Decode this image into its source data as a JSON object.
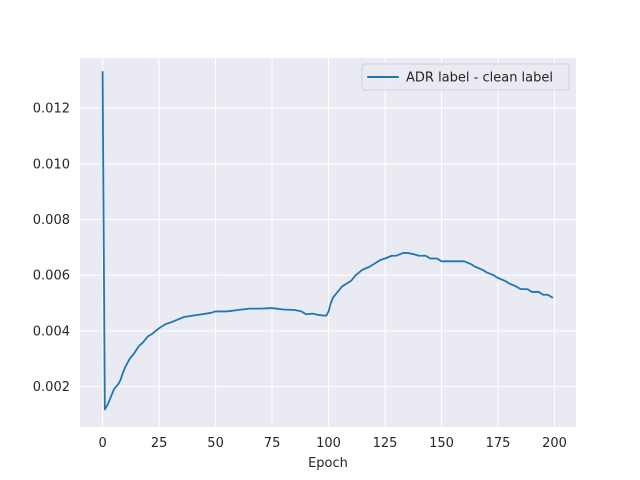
{
  "chart_data": {
    "type": "line",
    "title": "",
    "xlabel": "Epoch",
    "ylabel": "",
    "xlim": [
      -10,
      209.5
    ],
    "ylim": [
      0.00055,
      0.0138
    ],
    "xticks": [
      0,
      25,
      50,
      75,
      100,
      125,
      150,
      175,
      200
    ],
    "yticks": [
      0.002,
      0.004,
      0.006,
      0.008,
      0.01,
      0.012
    ],
    "ytick_labels": [
      "0.002",
      "0.004",
      "0.006",
      "0.008",
      "0.010",
      "0.012"
    ],
    "grid": true,
    "legend_position": "top-right",
    "colors": {
      "background": "#eaeaf2",
      "grid": "#ffffff",
      "series": "#1f77b4"
    },
    "series": [
      {
        "name": "ADR label - clean label",
        "x": [
          0,
          1,
          2,
          3,
          4,
          5,
          6,
          7,
          8,
          9,
          10,
          12,
          14,
          16,
          18,
          20,
          22,
          25,
          28,
          30,
          33,
          36,
          40,
          44,
          48,
          50,
          55,
          60,
          65,
          70,
          75,
          80,
          85,
          88,
          90,
          93,
          95,
          97,
          98,
          99,
          100,
          101,
          102,
          104,
          106,
          108,
          110,
          112,
          115,
          118,
          120,
          123,
          125,
          128,
          130,
          133,
          135,
          138,
          140,
          143,
          145,
          148,
          150,
          153,
          155,
          158,
          160,
          163,
          165,
          168,
          170,
          173,
          175,
          178,
          180,
          183,
          185,
          188,
          190,
          193,
          195,
          197,
          199
        ],
        "values": [
          0.0133,
          0.00118,
          0.00132,
          0.0015,
          0.0017,
          0.0019,
          0.002,
          0.0021,
          0.00225,
          0.0025,
          0.0027,
          0.003,
          0.0032,
          0.00345,
          0.0036,
          0.0038,
          0.0039,
          0.0041,
          0.00425,
          0.0043,
          0.0044,
          0.0045,
          0.00455,
          0.0046,
          0.00465,
          0.0047,
          0.0047,
          0.00475,
          0.0048,
          0.0048,
          0.00482,
          0.00477,
          0.00475,
          0.0047,
          0.0046,
          0.00462,
          0.00458,
          0.00456,
          0.00455,
          0.00455,
          0.0047,
          0.005,
          0.0052,
          0.0054,
          0.0056,
          0.0057,
          0.0058,
          0.006,
          0.0062,
          0.0063,
          0.0064,
          0.00655,
          0.0066,
          0.0067,
          0.0067,
          0.0068,
          0.0068,
          0.00675,
          0.0067,
          0.0067,
          0.0066,
          0.0066,
          0.0065,
          0.0065,
          0.0065,
          0.0065,
          0.0065,
          0.0064,
          0.0063,
          0.0062,
          0.0061,
          0.006,
          0.0059,
          0.0058,
          0.0057,
          0.0056,
          0.0055,
          0.0055,
          0.0054,
          0.0054,
          0.0053,
          0.0053,
          0.0052
        ]
      }
    ]
  }
}
